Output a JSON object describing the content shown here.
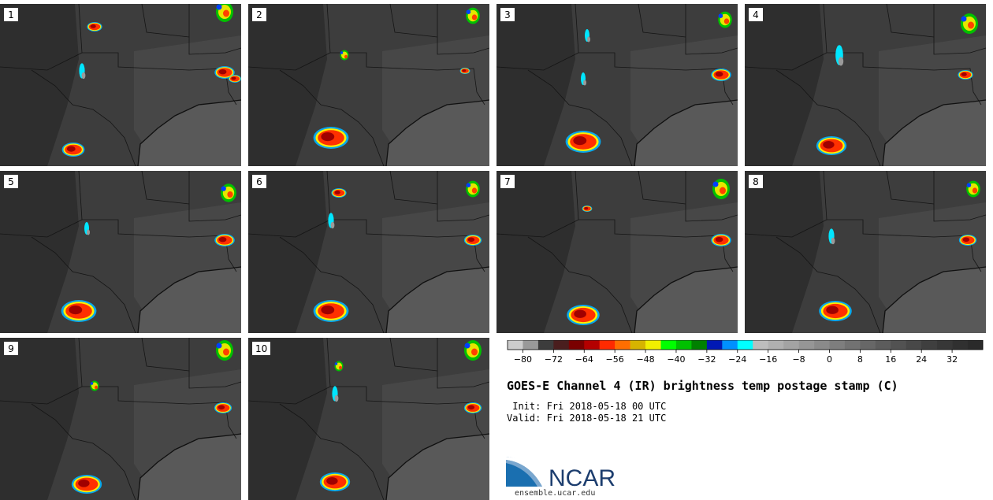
{
  "panels": [
    {
      "label": "1"
    },
    {
      "label": "2"
    },
    {
      "label": "3"
    },
    {
      "label": "4"
    },
    {
      "label": "5"
    },
    {
      "label": "6"
    },
    {
      "label": "7"
    },
    {
      "label": "8"
    },
    {
      "label": "9"
    },
    {
      "label": "10"
    }
  ],
  "colorbar": {
    "min": -84,
    "max": 40,
    "step": 4,
    "colors": [
      "#cccccc",
      "#999999",
      "#3c3c3c",
      "#4a1e1e",
      "#7a0000",
      "#b40000",
      "#ff2a00",
      "#ff6e00",
      "#d6b400",
      "#f0f000",
      "#00ff00",
      "#00c000",
      "#008000",
      "#0018b4",
      "#0090ff",
      "#00ffff",
      "#bdbdbd",
      "#b0b0b0",
      "#a3a3a3",
      "#969696",
      "#8a8a8a",
      "#7e7e7e",
      "#727272",
      "#676767",
      "#5c5c5c",
      "#525252",
      "#484848",
      "#3f3f3f",
      "#373737",
      "#303030",
      "#2a2a2a"
    ],
    "ticks": [
      "-80",
      "-72",
      "-64",
      "-56",
      "-48",
      "-40",
      "-32",
      "-24",
      "-16",
      "-8",
      "0",
      "8",
      "16",
      "24",
      "32"
    ]
  },
  "title": "GOES-E Channel 4 (IR) brightness temp postage stamp (C)",
  "init_line": " Init: Fri 2018-05-18 00 UTC",
  "valid_line": "Valid: Fri 2018-05-18 21 UTC",
  "logo_text": "NCAR",
  "logo_url": "ensemble.ucar.edu"
}
